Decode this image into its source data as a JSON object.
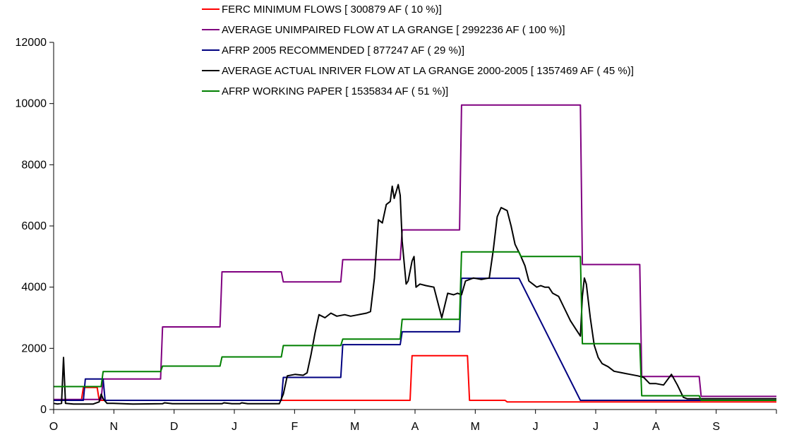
{
  "chart_data": {
    "type": "line",
    "title": "",
    "xlabel": "",
    "ylabel": "",
    "x_range": [
      0,
      365
    ],
    "ylim": [
      0,
      12000
    ],
    "y_ticks": [
      0,
      2000,
      4000,
      6000,
      8000,
      10000,
      12000
    ],
    "x_tick_labels": [
      "O",
      "N",
      "D",
      "J",
      "F",
      "M",
      "A",
      "M",
      "J",
      "J",
      "A",
      "S"
    ],
    "grid": false,
    "legend_position": "top",
    "series": [
      {
        "name": "FERC MINIMUM FLOWS  [ 300879 AF ( 10 %)]",
        "color": "#ff0000",
        "points": [
          [
            0,
            300
          ],
          [
            14,
            300
          ],
          [
            15,
            720
          ],
          [
            22,
            720
          ],
          [
            23,
            300
          ],
          [
            180,
            300
          ],
          [
            181,
            1760
          ],
          [
            209,
            1760
          ],
          [
            210,
            300
          ],
          [
            228,
            300
          ],
          [
            229,
            250
          ],
          [
            365,
            250
          ]
        ]
      },
      {
        "name": "AVERAGE UNIMPAIRED FLOW AT LA GRANGE [ 2992236 AF ( 100 %)]",
        "color": "#800080",
        "points": [
          [
            0,
            330
          ],
          [
            24,
            330
          ],
          [
            25,
            1000
          ],
          [
            54,
            1000
          ],
          [
            55,
            2700
          ],
          [
            84,
            2700
          ],
          [
            85,
            4500
          ],
          [
            115,
            4500
          ],
          [
            116,
            4170
          ],
          [
            145,
            4170
          ],
          [
            146,
            4900
          ],
          [
            175,
            4900
          ],
          [
            176,
            5870
          ],
          [
            205,
            5870
          ],
          [
            206,
            9950
          ],
          [
            266,
            9950
          ],
          [
            267,
            4740
          ],
          [
            296,
            4740
          ],
          [
            297,
            1080
          ],
          [
            326,
            1080
          ],
          [
            327,
            430
          ],
          [
            365,
            430
          ]
        ]
      },
      {
        "name": "AFRP 2005 RECOMMENDED [ 877247 AF ( 29 %)]",
        "color": "#000080",
        "points": [
          [
            0,
            300
          ],
          [
            15,
            300
          ],
          [
            16,
            1000
          ],
          [
            25,
            1000
          ],
          [
            26,
            300
          ],
          [
            115,
            300
          ],
          [
            116,
            1050
          ],
          [
            145,
            1050
          ],
          [
            146,
            2120
          ],
          [
            175,
            2120
          ],
          [
            176,
            2540
          ],
          [
            205,
            2540
          ],
          [
            206,
            4290
          ],
          [
            235,
            4290
          ],
          [
            266,
            300
          ],
          [
            365,
            300
          ]
        ]
      },
      {
        "name": "AVERAGE ACTUAL INRIVER FLOW AT LA GRANGE 2000-2005 [ 1357469 AF ( 45 %)]",
        "color": "#000000",
        "points": [
          [
            0,
            200
          ],
          [
            2,
            180
          ],
          [
            4,
            200
          ],
          [
            5,
            1700
          ],
          [
            6,
            200
          ],
          [
            10,
            180
          ],
          [
            20,
            180
          ],
          [
            23,
            250
          ],
          [
            24,
            500
          ],
          [
            25,
            350
          ],
          [
            27,
            200
          ],
          [
            30,
            200
          ],
          [
            40,
            180
          ],
          [
            55,
            190
          ],
          [
            56,
            220
          ],
          [
            60,
            190
          ],
          [
            85,
            190
          ],
          [
            86,
            220
          ],
          [
            90,
            190
          ],
          [
            94,
            190
          ],
          [
            95,
            220
          ],
          [
            98,
            190
          ],
          [
            114,
            190
          ],
          [
            116,
            500
          ],
          [
            118,
            1100
          ],
          [
            122,
            1150
          ],
          [
            126,
            1120
          ],
          [
            128,
            1200
          ],
          [
            130,
            1800
          ],
          [
            132,
            2500
          ],
          [
            134,
            3100
          ],
          [
            137,
            3000
          ],
          [
            140,
            3150
          ],
          [
            143,
            3050
          ],
          [
            147,
            3100
          ],
          [
            150,
            3050
          ],
          [
            154,
            3100
          ],
          [
            158,
            3150
          ],
          [
            160,
            3200
          ],
          [
            162,
            4300
          ],
          [
            164,
            6200
          ],
          [
            166,
            6100
          ],
          [
            168,
            6700
          ],
          [
            170,
            6800
          ],
          [
            171,
            7300
          ],
          [
            172,
            6900
          ],
          [
            174,
            7350
          ],
          [
            175,
            7000
          ],
          [
            176,
            5500
          ],
          [
            178,
            4100
          ],
          [
            179,
            4200
          ],
          [
            181,
            4850
          ],
          [
            182,
            5000
          ],
          [
            183,
            4000
          ],
          [
            185,
            4100
          ],
          [
            188,
            4050
          ],
          [
            192,
            4000
          ],
          [
            196,
            3000
          ],
          [
            199,
            3800
          ],
          [
            202,
            3750
          ],
          [
            204,
            3800
          ],
          [
            206,
            3750
          ],
          [
            208,
            4200
          ],
          [
            212,
            4300
          ],
          [
            216,
            4250
          ],
          [
            220,
            4300
          ],
          [
            222,
            5200
          ],
          [
            224,
            6300
          ],
          [
            226,
            6600
          ],
          [
            229,
            6500
          ],
          [
            231,
            6000
          ],
          [
            233,
            5400
          ],
          [
            236,
            5000
          ],
          [
            238,
            4700
          ],
          [
            240,
            4200
          ],
          [
            242,
            4100
          ],
          [
            244,
            4000
          ],
          [
            246,
            4050
          ],
          [
            248,
            4000
          ],
          [
            250,
            4000
          ],
          [
            252,
            3800
          ],
          [
            255,
            3700
          ],
          [
            258,
            3300
          ],
          [
            261,
            2900
          ],
          [
            264,
            2600
          ],
          [
            266,
            2400
          ],
          [
            267,
            3700
          ],
          [
            268,
            4300
          ],
          [
            269,
            4100
          ],
          [
            271,
            3000
          ],
          [
            273,
            2100
          ],
          [
            275,
            1700
          ],
          [
            277,
            1500
          ],
          [
            280,
            1400
          ],
          [
            283,
            1250
          ],
          [
            287,
            1200
          ],
          [
            291,
            1150
          ],
          [
            295,
            1100
          ],
          [
            298,
            1050
          ],
          [
            301,
            850
          ],
          [
            304,
            850
          ],
          [
            308,
            800
          ],
          [
            312,
            1150
          ],
          [
            315,
            800
          ],
          [
            318,
            400
          ],
          [
            320,
            350
          ],
          [
            365,
            350
          ]
        ]
      },
      {
        "name": "AFRP  WORKING PAPER  [ 1535834 AF ( 51 %)]",
        "color": "#008000",
        "points": [
          [
            0,
            750
          ],
          [
            24,
            750
          ],
          [
            25,
            1240
          ],
          [
            54,
            1240
          ],
          [
            55,
            1420
          ],
          [
            84,
            1420
          ],
          [
            85,
            1720
          ],
          [
            115,
            1720
          ],
          [
            116,
            2090
          ],
          [
            145,
            2090
          ],
          [
            146,
            2300
          ],
          [
            175,
            2300
          ],
          [
            176,
            2950
          ],
          [
            205,
            2950
          ],
          [
            206,
            5150
          ],
          [
            235,
            5150
          ],
          [
            236,
            5000
          ],
          [
            266,
            5000
          ],
          [
            267,
            2150
          ],
          [
            296,
            2150
          ],
          [
            297,
            450
          ],
          [
            326,
            450
          ],
          [
            327,
            300
          ],
          [
            365,
            300
          ]
        ]
      }
    ]
  }
}
